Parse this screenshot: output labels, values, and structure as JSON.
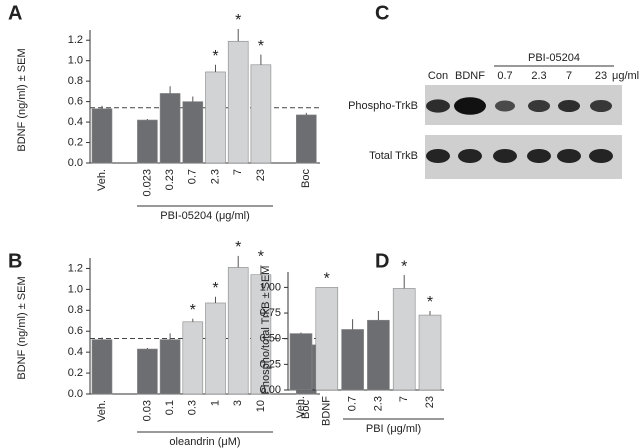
{
  "chart_data": [
    {
      "type": "bar",
      "panel_label": "A",
      "ylabel": "BDNF (ng/ml) ± SEM",
      "categories": [
        "Veh.",
        null,
        "0.023",
        "0.23",
        "0.7",
        "2.3",
        "7",
        "23",
        null,
        "Boc"
      ],
      "values": [
        0.53,
        null,
        0.42,
        0.68,
        0.6,
        0.89,
        1.19,
        0.96,
        null,
        0.47
      ],
      "errors": [
        0.03,
        null,
        0.01,
        0.07,
        0.05,
        0.07,
        0.12,
        0.1,
        null,
        0.02
      ],
      "colors": [
        "#6d6e71",
        null,
        "#6d6e71",
        "#6d6e71",
        "#6d6e71",
        "#d1d3d4",
        "#d1d3d4",
        "#d1d3d4",
        null,
        "#6d6e71"
      ],
      "significance": [
        null,
        null,
        null,
        null,
        null,
        "*",
        "*",
        "*",
        null,
        null
      ],
      "reference_line": 0.54,
      "group_label": "PBI-05204 (μg/ml)",
      "ylim": [
        0,
        1.3
      ],
      "yticks": [
        {
          "value": 0,
          "label": "0.0"
        },
        0.2,
        0.4,
        0.6,
        0.8,
        {
          "value": 1,
          "label": "1.0"
        },
        1.2
      ]
    },
    {
      "type": "bar",
      "panel_label": "B",
      "ylabel": "BDNF (ng/ml) ± SEM",
      "categories": [
        "Veh.",
        null,
        "0.03",
        "0.1",
        "0.3",
        "1",
        "3",
        "10",
        null,
        "Boc"
      ],
      "values": [
        0.52,
        null,
        0.43,
        0.52,
        0.69,
        0.87,
        1.21,
        1.14,
        null,
        0.47
      ],
      "errors": [
        0.02,
        null,
        0.01,
        0.06,
        0.03,
        0.06,
        0.11,
        0.09,
        null,
        0.02
      ],
      "colors": [
        "#6d6e71",
        null,
        "#6d6e71",
        "#6d6e71",
        "#d1d3d4",
        "#d1d3d4",
        "#d1d3d4",
        "#d1d3d4",
        null,
        "#6d6e71"
      ],
      "significance": [
        null,
        null,
        null,
        null,
        "*",
        "*",
        "*",
        "*",
        null,
        null
      ],
      "reference_line": 0.53,
      "group_label": "oleandrin (μM)",
      "ylim": [
        0,
        1.3
      ],
      "yticks": [
        {
          "value": 0,
          "label": "0.0"
        },
        0.2,
        0.4,
        0.6,
        0.8,
        {
          "value": 1,
          "label": "1.0"
        },
        1.2
      ]
    },
    {
      "type": "bar",
      "panel_label": "D",
      "ylabel": "Phospho/total TrkB ± SEM",
      "categories": [
        "Veh.",
        "BDNF",
        "0.7",
        "2.3",
        "7",
        "23"
      ],
      "values": [
        0.55,
        1.0,
        0.59,
        0.68,
        0.99,
        0.73
      ],
      "errors": [
        0.01,
        0,
        0.1,
        0.09,
        0.13,
        0.04
      ],
      "colors": [
        "#6d6e71",
        "#d1d3d4",
        "#6d6e71",
        "#6d6e71",
        "#d1d3d4",
        "#d1d3d4"
      ],
      "significance": [
        null,
        "*",
        null,
        null,
        "*",
        "*"
      ],
      "group_label": "PBI (μg/ml)",
      "ylim": [
        0,
        1.15
      ],
      "yticks": [
        {
          "value": 0,
          "label": "0.00"
        },
        0.25,
        {
          "value": 0.5,
          "label": "0.50"
        },
        0.75,
        {
          "value": 1,
          "label": "1.00"
        }
      ]
    }
  ],
  "blot_panel": {
    "panel_label": "C",
    "columns": [
      "Con",
      "BDNF",
      "0.7",
      "2.3",
      "7",
      "23"
    ],
    "group_label": "PBI-05204",
    "unit": "μg/ml",
    "rows": [
      "Phospho-TrkB",
      "Total TrkB"
    ]
  }
}
